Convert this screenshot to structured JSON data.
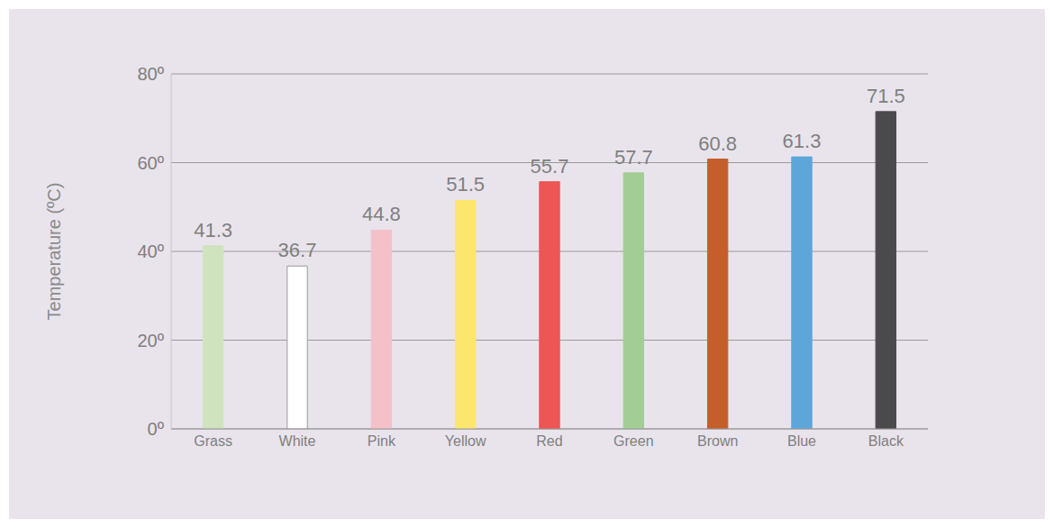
{
  "chart_data": {
    "type": "bar",
    "y_label": "Temperature (ºC)",
    "categories": [
      "Grass",
      "White",
      "Pink",
      "Yellow",
      "Red",
      "Green",
      "Brown",
      "Blue",
      "Black"
    ],
    "values": [
      41.3,
      36.7,
      44.8,
      51.5,
      55.7,
      57.7,
      60.8,
      61.3,
      71.5
    ],
    "colors": [
      "#d0e3bf",
      "#ffffff",
      "#f5c1c9",
      "#fde66e",
      "#ee5555",
      "#a2ce96",
      "#c45e2b",
      "#5da6da",
      "#4a4a4c"
    ],
    "ylim": [
      0,
      80
    ],
    "yticks": [
      {
        "value": 0,
        "label": "0º"
      },
      {
        "value": 20,
        "label": "20º"
      },
      {
        "value": 40,
        "label": "40º"
      },
      {
        "value": 60,
        "label": "60º"
      },
      {
        "value": 80,
        "label": "80º"
      }
    ],
    "grid": true,
    "data_labels": true
  }
}
